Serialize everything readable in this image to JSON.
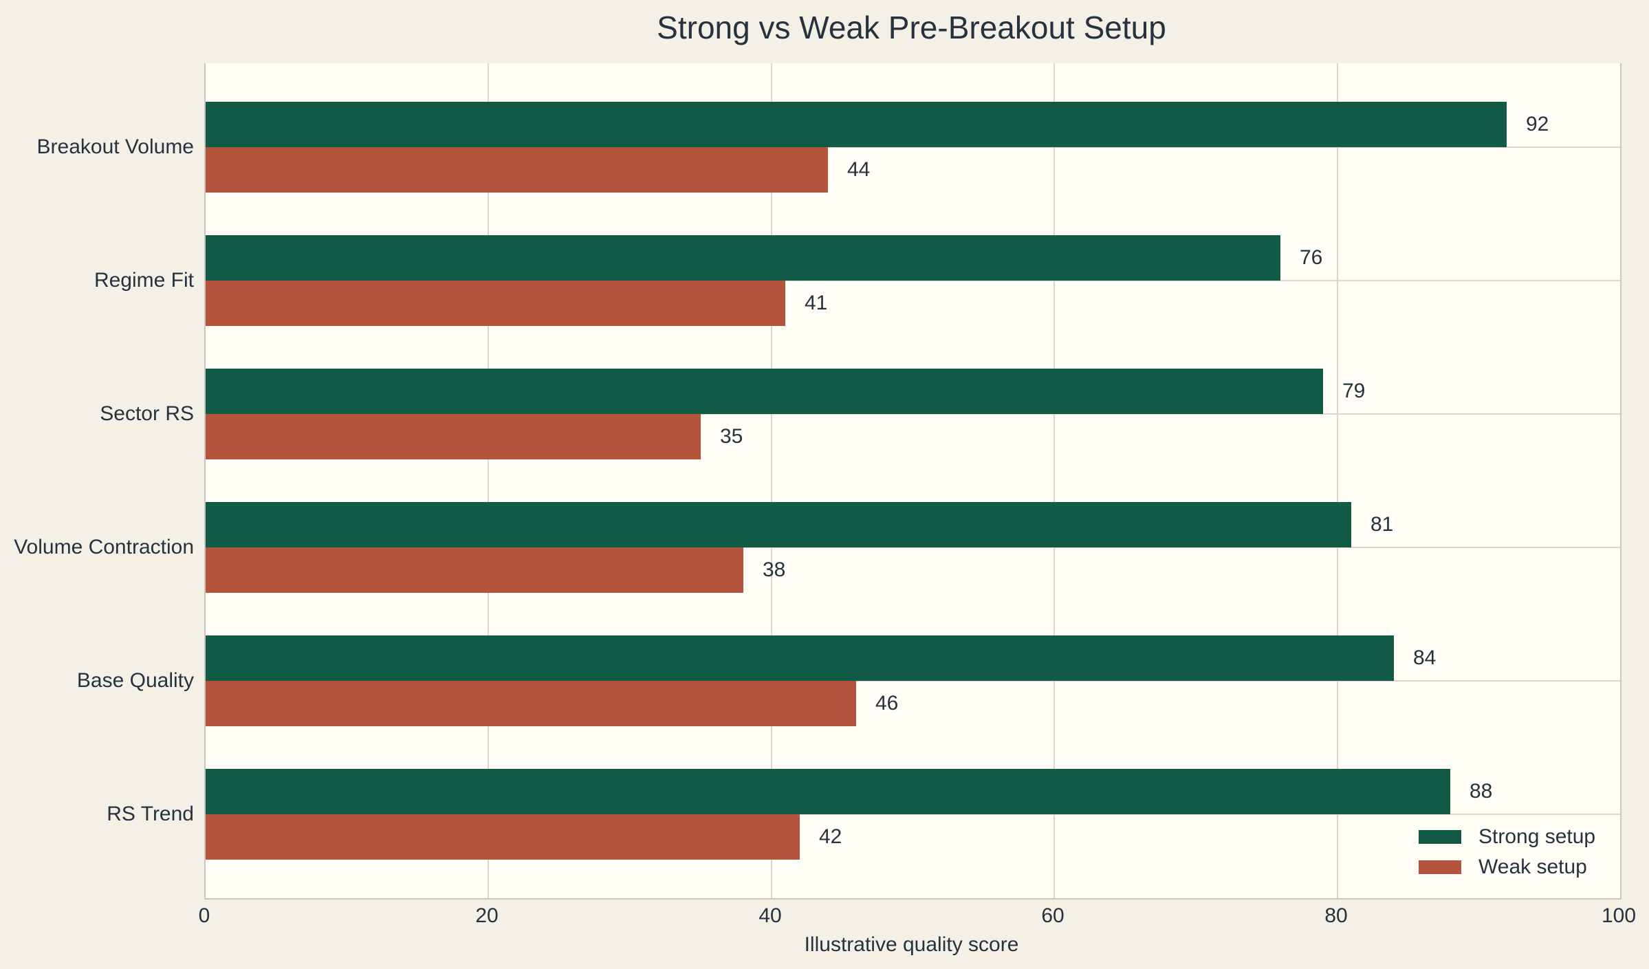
{
  "title": "Strong vs Weak Pre-Breakout Setup",
  "colors": {
    "page_bg": "#f4f0e5",
    "plot_bg": "#fffdf6",
    "grid": "#d8d6ce",
    "spine": "#c8c6bf",
    "text": "#26323e",
    "strong": "#115b46",
    "weak": "#b5543d"
  },
  "legend": {
    "strong_label": "Strong setup",
    "weak_label": "Weak setup"
  },
  "chart_data": {
    "type": "bar",
    "orientation": "horizontal",
    "title": "Strong vs Weak Pre-Breakout Setup",
    "xlabel": "Illustrative quality score",
    "ylabel": "",
    "categories": [
      "Breakout Volume",
      "Regime Fit",
      "Sector RS",
      "Volume Contraction",
      "Base Quality",
      "RS Trend"
    ],
    "series": [
      {
        "name": "Strong setup",
        "color": "#115b46",
        "values": [
          92,
          76,
          79,
          81,
          84,
          88
        ]
      },
      {
        "name": "Weak setup",
        "color": "#b5543d",
        "values": [
          44,
          41,
          35,
          38,
          46,
          42
        ]
      }
    ],
    "xlim": [
      0,
      100
    ],
    "xticks": [
      0,
      20,
      40,
      60,
      80,
      100
    ],
    "xtick_labels": [
      "0",
      "20",
      "40",
      "60",
      "80",
      "100"
    ],
    "grid": true,
    "value_labels": true,
    "legend_position": "lower right"
  }
}
